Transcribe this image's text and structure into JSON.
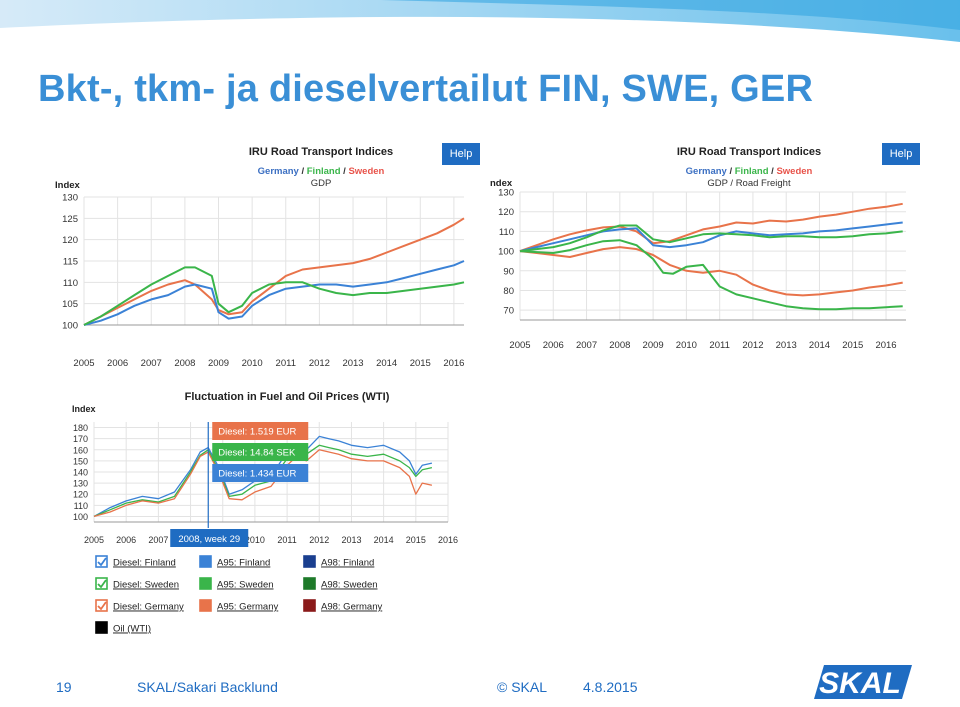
{
  "slide": {
    "title": "Bkt-, tkm- ja dieselvertailut FIN, SWE, GER",
    "page_number": "19",
    "author": "SKAL/Sakari Backlund",
    "copyright": "© SKAL",
    "date": "4.8.2015",
    "logo_text": "SKAL"
  },
  "colors": {
    "germany": "#e8734a",
    "finland": "#3b82d6",
    "sweden": "#3ab54a",
    "title": "#3a8fd6",
    "help": "#1f6cc2",
    "oil": "#000000",
    "a98_finland": "#1a3f8f",
    "a98_sweden": "#1e7a2a",
    "a98_germany": "#8b1a1a"
  },
  "chart_data": [
    {
      "type": "line",
      "title": "IRU Road Transport Indices",
      "subtitle_parts": [
        "Germany",
        " / ",
        "Finland",
        " / ",
        "Sweden"
      ],
      "subtitle2": "GDP",
      "help_label": "Help",
      "ylabel": "Index",
      "xlim": [
        2005,
        2016.3
      ],
      "ylim": [
        100,
        130
      ],
      "y_ticks": [
        100,
        105,
        110,
        115,
        120,
        125,
        130
      ],
      "x_ticks": [
        2005,
        2006,
        2007,
        2008,
        2009,
        2010,
        2011,
        2012,
        2013,
        2014,
        2015,
        2016
      ],
      "grid": true,
      "series": [
        {
          "name": "Germany",
          "color": "#e8734a",
          "x": [
            2005,
            2005.5,
            2006,
            2006.5,
            2007,
            2007.5,
            2008,
            2008.3,
            2008.8,
            2009,
            2009.3,
            2009.7,
            2010,
            2010.5,
            2011,
            2011.5,
            2012,
            2012.5,
            2013,
            2013.5,
            2014,
            2014.5,
            2015,
            2015.5,
            2016,
            2016.3
          ],
          "values": [
            100,
            102,
            104,
            106,
            108,
            109.5,
            110.5,
            109.5,
            106,
            103.5,
            102.5,
            103,
            105.5,
            108.5,
            111.5,
            113,
            113.5,
            114,
            114.5,
            115.5,
            117,
            118.5,
            120,
            121.5,
            123.5,
            125
          ]
        },
        {
          "name": "Finland",
          "color": "#3b82d6",
          "x": [
            2005,
            2005.5,
            2006,
            2006.5,
            2007,
            2007.5,
            2008,
            2008.3,
            2008.8,
            2009,
            2009.3,
            2009.7,
            2010,
            2010.5,
            2011,
            2011.5,
            2012,
            2012.5,
            2013,
            2013.5,
            2014,
            2014.5,
            2015,
            2015.5,
            2016,
            2016.3
          ],
          "values": [
            100,
            101,
            102.5,
            104.5,
            106,
            107,
            109,
            109.5,
            108.5,
            103,
            101.5,
            102,
            104.5,
            107,
            108.5,
            109,
            109.5,
            109.5,
            109,
            109.5,
            110,
            111,
            112,
            113,
            114,
            115
          ]
        },
        {
          "name": "Sweden",
          "color": "#3ab54a",
          "x": [
            2005,
            2005.5,
            2006,
            2006.5,
            2007,
            2007.5,
            2008,
            2008.3,
            2008.8,
            2009,
            2009.3,
            2009.7,
            2010,
            2010.5,
            2011,
            2011.5,
            2012,
            2012.5,
            2013,
            2013.5,
            2014,
            2014.5,
            2015,
            2015.5,
            2016,
            2016.3
          ],
          "values": [
            100,
            102,
            104.5,
            107,
            109.5,
            111.5,
            113.5,
            113.5,
            111.5,
            105,
            103,
            104.5,
            107.5,
            109.5,
            110,
            110,
            108.5,
            107.5,
            107,
            107.5,
            107.5,
            108,
            108.5,
            109,
            109.5,
            110
          ]
        }
      ]
    },
    {
      "type": "line",
      "title": "IRU Road Transport Indices",
      "subtitle_parts": [
        "Germany",
        " / ",
        "Finland",
        " / ",
        "Sweden"
      ],
      "subtitle2": "GDP / Road Freight",
      "help_label": "Help",
      "ylabel": "ndex",
      "xlim": [
        2005,
        2016.6
      ],
      "ylim": [
        65,
        130
      ],
      "y_ticks": [
        70,
        80,
        90,
        100,
        110,
        120,
        130
      ],
      "x_ticks": [
        2005,
        2006,
        2007,
        2008,
        2009,
        2010,
        2011,
        2012,
        2013,
        2014,
        2015,
        2016
      ],
      "grid": true,
      "series": [
        {
          "name": "Germany",
          "color": "#e8734a",
          "x": [
            2005,
            2005.5,
            2006,
            2006.5,
            2007,
            2007.5,
            2008,
            2008.5,
            2009,
            2009.5,
            2010,
            2010.5,
            2011,
            2011.5,
            2012,
            2012.5,
            2013,
            2013.5,
            2014,
            2014.5,
            2015,
            2015.5,
            2016,
            2016.5
          ],
          "values": [
            100,
            103,
            106,
            108.5,
            110.5,
            112,
            112.5,
            110,
            104,
            105,
            108,
            111,
            112.5,
            114.5,
            114,
            115.5,
            115,
            116,
            117.5,
            118.5,
            120,
            121.5,
            122.5,
            124
          ]
        },
        {
          "name": "Finland",
          "color": "#3b82d6",
          "x": [
            2005,
            2005.5,
            2006,
            2006.5,
            2007,
            2007.5,
            2008,
            2008.5,
            2009,
            2009.5,
            2010,
            2010.5,
            2011,
            2011.5,
            2012,
            2012.5,
            2013,
            2013.5,
            2014,
            2014.5,
            2015,
            2015.5,
            2016,
            2016.5
          ],
          "values": [
            100,
            102,
            104,
            106,
            108,
            110,
            111,
            111.5,
            103,
            102,
            103,
            104.5,
            108,
            110,
            109,
            108,
            108.5,
            109,
            110,
            110.5,
            111.5,
            112.5,
            113.5,
            114.5
          ]
        },
        {
          "name": "Sweden",
          "color": "#3ab54a",
          "x": [
            2005,
            2005.5,
            2006,
            2006.5,
            2007,
            2007.5,
            2008,
            2008.5,
            2009,
            2009.5,
            2010,
            2010.5,
            2011,
            2011.5,
            2012,
            2012.5,
            2013,
            2013.5,
            2014,
            2014.5,
            2015,
            2015.5,
            2016,
            2016.5
          ],
          "values": [
            100,
            101,
            102,
            104,
            107,
            110.5,
            113,
            113,
            106,
            104.5,
            106.5,
            108.5,
            109,
            108.5,
            108,
            107,
            107.5,
            107.5,
            107,
            107,
            107.5,
            108.5,
            109,
            110
          ]
        },
        {
          "name": "Germany",
          "color": "#e8734a",
          "x": [
            2005,
            2005.5,
            2006,
            2006.5,
            2007,
            2007.5,
            2008,
            2008.5,
            2009,
            2009.5,
            2010,
            2010.5,
            2011,
            2011.5,
            2012,
            2012.5,
            2013,
            2013.5,
            2014,
            2014.5,
            2015,
            2015.5,
            2016,
            2016.5
          ],
          "values": [
            100,
            99,
            98,
            97,
            99,
            101,
            102,
            101,
            98,
            93,
            90,
            89,
            90,
            88,
            83,
            80,
            78,
            77.5,
            78,
            79,
            80,
            81.5,
            82.5,
            84
          ]
        },
        {
          "name": "Sweden",
          "color": "#3ab54a",
          "x": [
            2005,
            2005.5,
            2006,
            2006.5,
            2007,
            2007.5,
            2008,
            2008.5,
            2009,
            2009.3,
            2009.6,
            2010,
            2010.5,
            2011,
            2011.5,
            2012,
            2012.5,
            2013,
            2013.5,
            2014,
            2014.5,
            2015,
            2015.5,
            2016,
            2016.5
          ],
          "values": [
            100,
            99.5,
            99,
            100.5,
            103,
            105,
            105.5,
            103,
            96,
            89,
            88.5,
            92,
            93,
            82,
            78,
            76,
            74,
            72,
            71,
            70.5,
            70.5,
            71,
            71,
            71.5,
            72
          ]
        }
      ]
    },
    {
      "type": "line",
      "title": "Fluctuation in Fuel and Oil Prices (WTI)",
      "ylabel": "Index",
      "xlim": [
        2005,
        2016
      ],
      "ylim": [
        95,
        185
      ],
      "y_ticks": [
        100,
        110,
        120,
        130,
        140,
        150,
        160,
        170,
        180
      ],
      "x_ticks": [
        2005,
        2006,
        2007,
        2008,
        2009,
        2010,
        2011,
        2012,
        2013,
        2014,
        2015,
        2016
      ],
      "grid": true,
      "tooltip_header": "2008, week 29",
      "tooltip_year": 2008.55,
      "tooltips": [
        {
          "label": "Diesel: 1.519 EUR",
          "color": "#e8734a"
        },
        {
          "label": "Diesel: 14.84 SEK",
          "color": "#3ab54a"
        },
        {
          "label": "Diesel: 1.434 EUR",
          "color": "#3b82d6"
        }
      ],
      "series": [
        {
          "name": "Diesel: Finland",
          "color": "#3b82d6",
          "x": [
            2005,
            2005.5,
            2006,
            2006.5,
            2007,
            2007.5,
            2008,
            2008.3,
            2008.55,
            2008.9,
            2009.2,
            2009.6,
            2010,
            2010.5,
            2011,
            2011.3,
            2011.6,
            2012,
            2012.3,
            2012.6,
            2013,
            2013.5,
            2014,
            2014.5,
            2014.8,
            2015,
            2015.2,
            2015.5
          ],
          "values": [
            100,
            108,
            114,
            118,
            116,
            122,
            142,
            158,
            162,
            143,
            120,
            124,
            132,
            136,
            158,
            165,
            160,
            172,
            170,
            168,
            164,
            162,
            164,
            158,
            150,
            138,
            146,
            148
          ]
        },
        {
          "name": "Diesel: Sweden",
          "color": "#3ab54a",
          "x": [
            2005,
            2005.5,
            2006,
            2006.5,
            2007,
            2007.5,
            2008,
            2008.3,
            2008.55,
            2008.9,
            2009.2,
            2009.6,
            2010,
            2010.5,
            2011,
            2011.3,
            2011.6,
            2012,
            2012.3,
            2012.6,
            2013,
            2013.5,
            2014,
            2014.5,
            2014.8,
            2015,
            2015.2,
            2015.5
          ],
          "values": [
            100,
            106,
            112,
            115,
            113,
            118,
            140,
            155,
            160,
            140,
            118,
            120,
            128,
            132,
            152,
            160,
            156,
            164,
            162,
            160,
            156,
            154,
            156,
            150,
            144,
            136,
            142,
            144
          ]
        },
        {
          "name": "Diesel: Germany",
          "color": "#e8734a",
          "x": [
            2005,
            2005.5,
            2006,
            2006.5,
            2007,
            2007.5,
            2008,
            2008.3,
            2008.55,
            2008.9,
            2009.2,
            2009.6,
            2010,
            2010.5,
            2011,
            2011.3,
            2011.6,
            2012,
            2012.3,
            2012.6,
            2013,
            2013.5,
            2014,
            2014.5,
            2014.8,
            2015,
            2015.2,
            2015.5
          ],
          "values": [
            100,
            104,
            110,
            114,
            112,
            116,
            138,
            154,
            158,
            138,
            116,
            115,
            122,
            127,
            146,
            154,
            150,
            160,
            158,
            156,
            152,
            150,
            150,
            144,
            136,
            120,
            130,
            128
          ]
        }
      ],
      "legend": [
        {
          "label": "Diesel: Finland",
          "color": "#3b82d6",
          "checked": true
        },
        {
          "label": "A95: Finland",
          "color": "#3b82d6",
          "checked": false
        },
        {
          "label": "A98: Finland",
          "color": "#1a3f8f",
          "checked": false
        },
        {
          "label": "Diesel: Sweden",
          "color": "#3ab54a",
          "checked": true
        },
        {
          "label": "A95: Sweden",
          "color": "#3ab54a",
          "checked": false
        },
        {
          "label": "A98: Sweden",
          "color": "#1e7a2a",
          "checked": false
        },
        {
          "label": "Diesel: Germany",
          "color": "#e8734a",
          "checked": true
        },
        {
          "label": "A95: Germany",
          "color": "#e8734a",
          "checked": false
        },
        {
          "label": "A98: Germany",
          "color": "#8b1a1a",
          "checked": false
        },
        {
          "label": "Oil (WTI)",
          "color": "#000000",
          "checked": false
        }
      ]
    }
  ]
}
